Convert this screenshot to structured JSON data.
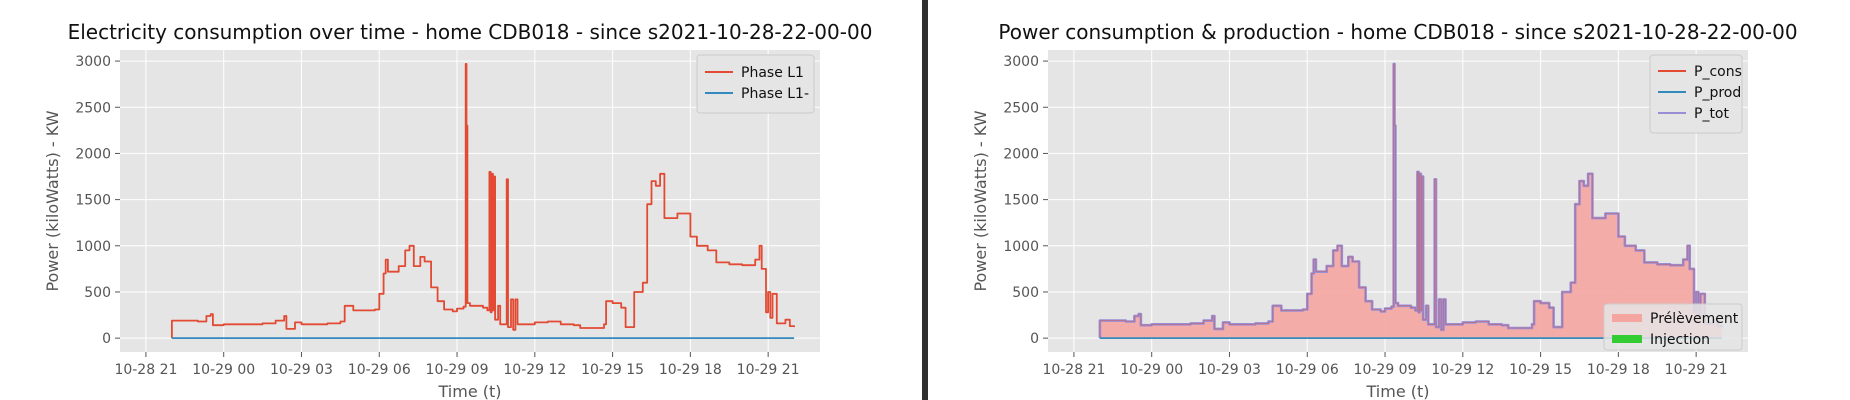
{
  "chart_data": [
    {
      "type": "line",
      "title": "Electricity consumption over time - home CDB018 - since s2021-10-28-22-00-00",
      "xlabel": "Time (t)",
      "ylabel": "Power (kiloWatts) - KW",
      "xlim": [
        "2021-10-28 20:00",
        "2021-10-29 23:00"
      ],
      "ylim": [
        -150,
        3120
      ],
      "x_ticks": [
        "10-28 21",
        "10-29 00",
        "10-29 03",
        "10-29 06",
        "10-29 09",
        "10-29 12",
        "10-29 15",
        "10-29 18",
        "10-29 21"
      ],
      "y_ticks": [
        0,
        500,
        1000,
        1500,
        2000,
        2500,
        3000
      ],
      "grid": true,
      "legend_position": "top-right",
      "colors": {
        "Phase L1": "#E24A33",
        "Phase L1-": "#348ABD"
      },
      "series": [
        {
          "name": "Phase L1",
          "style": "step",
          "points": [
            [
              "2021-10-28 22:00",
              0
            ],
            [
              "2021-10-28 22:00",
              190
            ],
            [
              "2021-10-28 23:00",
              180
            ],
            [
              "2021-10-28 23:20",
              240
            ],
            [
              "2021-10-28 23:30",
              260
            ],
            [
              "2021-10-28 23:35",
              140
            ],
            [
              "2021-10-29 00:00",
              150
            ],
            [
              "2021-10-29 01:30",
              160
            ],
            [
              "2021-10-29 02:00",
              190
            ],
            [
              "2021-10-29 02:20",
              240
            ],
            [
              "2021-10-29 02:25",
              100
            ],
            [
              "2021-10-29 02:45",
              170
            ],
            [
              "2021-10-29 03:00",
              150
            ],
            [
              "2021-10-29 04:00",
              160
            ],
            [
              "2021-10-29 04:30",
              180
            ],
            [
              "2021-10-29 04:40",
              350
            ],
            [
              "2021-10-29 05:00",
              300
            ],
            [
              "2021-10-29 05:50",
              310
            ],
            [
              "2021-10-29 06:00",
              480
            ],
            [
              "2021-10-29 06:10",
              700
            ],
            [
              "2021-10-29 06:15",
              850
            ],
            [
              "2021-10-29 06:20",
              720
            ],
            [
              "2021-10-29 06:45",
              780
            ],
            [
              "2021-10-29 07:00",
              950
            ],
            [
              "2021-10-29 07:10",
              1000
            ],
            [
              "2021-10-29 07:20",
              780
            ],
            [
              "2021-10-29 07:35",
              880
            ],
            [
              "2021-10-29 07:45",
              830
            ],
            [
              "2021-10-29 08:00",
              550
            ],
            [
              "2021-10-29 08:15",
              400
            ],
            [
              "2021-10-29 08:30",
              310
            ],
            [
              "2021-10-29 08:50",
              290
            ],
            [
              "2021-10-29 09:00",
              320
            ],
            [
              "2021-10-29 09:15",
              340
            ],
            [
              "2021-10-29 09:20",
              2970
            ],
            [
              "2021-10-29 09:22",
              2300
            ],
            [
              "2021-10-29 09:24",
              380
            ],
            [
              "2021-10-29 09:30",
              350
            ],
            [
              "2021-10-29 10:00",
              330
            ],
            [
              "2021-10-29 10:10",
              300
            ],
            [
              "2021-10-29 10:15",
              1800
            ],
            [
              "2021-10-29 10:18",
              280
            ],
            [
              "2021-10-29 10:20",
              1780
            ],
            [
              "2021-10-29 10:23",
              300
            ],
            [
              "2021-10-29 10:25",
              1750
            ],
            [
              "2021-10-29 10:28",
              200
            ],
            [
              "2021-10-29 10:35",
              350
            ],
            [
              "2021-10-29 10:40",
              150
            ],
            [
              "2021-10-29 10:55",
              1720
            ],
            [
              "2021-10-29 10:58",
              120
            ],
            [
              "2021-10-29 11:05",
              420
            ],
            [
              "2021-10-29 11:10",
              90
            ],
            [
              "2021-10-29 11:15",
              420
            ],
            [
              "2021-10-29 11:20",
              150
            ],
            [
              "2021-10-29 12:00",
              170
            ],
            [
              "2021-10-29 12:30",
              180
            ],
            [
              "2021-10-29 13:00",
              150
            ],
            [
              "2021-10-29 13:30",
              140
            ],
            [
              "2021-10-29 13:45",
              110
            ],
            [
              "2021-10-29 14:40",
              150
            ],
            [
              "2021-10-29 14:45",
              400
            ],
            [
              "2021-10-29 15:00",
              380
            ],
            [
              "2021-10-29 15:20",
              330
            ],
            [
              "2021-10-29 15:30",
              120
            ],
            [
              "2021-10-29 15:50",
              500
            ],
            [
              "2021-10-29 16:10",
              600
            ],
            [
              "2021-10-29 16:20",
              1450
            ],
            [
              "2021-10-29 16:30",
              1700
            ],
            [
              "2021-10-29 16:40",
              1650
            ],
            [
              "2021-10-29 16:50",
              1780
            ],
            [
              "2021-10-29 17:00",
              1300
            ],
            [
              "2021-10-29 17:30",
              1350
            ],
            [
              "2021-10-29 18:00",
              1100
            ],
            [
              "2021-10-29 18:15",
              1000
            ],
            [
              "2021-10-29 18:40",
              950
            ],
            [
              "2021-10-29 19:00",
              820
            ],
            [
              "2021-10-29 19:30",
              800
            ],
            [
              "2021-10-29 20:00",
              790
            ],
            [
              "2021-10-29 20:30",
              850
            ],
            [
              "2021-10-29 20:40",
              1000
            ],
            [
              "2021-10-29 20:45",
              750
            ],
            [
              "2021-10-29 20:55",
              280
            ],
            [
              "2021-10-29 21:00",
              500
            ],
            [
              "2021-10-29 21:05",
              220
            ],
            [
              "2021-10-29 21:10",
              480
            ],
            [
              "2021-10-29 21:20",
              160
            ],
            [
              "2021-10-29 21:40",
              200
            ],
            [
              "2021-10-29 21:50",
              130
            ],
            [
              "2021-10-29 22:00",
              120
            ]
          ]
        },
        {
          "name": "Phase L1-",
          "style": "line",
          "points": [
            [
              "2021-10-28 22:00",
              0
            ],
            [
              "2021-10-29 22:00",
              0
            ]
          ]
        }
      ]
    },
    {
      "type": "area",
      "title": "Power consumption & production - home CDB018 - since s2021-10-28-22-00-00",
      "xlabel": "Time (t)",
      "ylabel": "Power (kiloWatts) - KW",
      "xlim": [
        "2021-10-28 20:00",
        "2021-10-29 23:00"
      ],
      "ylim": [
        -150,
        3120
      ],
      "x_ticks": [
        "10-28 21",
        "10-29 00",
        "10-29 03",
        "10-29 06",
        "10-29 09",
        "10-29 12",
        "10-29 15",
        "10-29 18",
        "10-29 21"
      ],
      "y_ticks": [
        0,
        500,
        1000,
        1500,
        2000,
        2500,
        3000
      ],
      "grid": true,
      "legend_position": "top-right",
      "legend2_position": "bottom-right",
      "series": [
        {
          "name": "P_cons",
          "color": "#E24A33",
          "same_as": "Phase L1"
        },
        {
          "name": "P_prod",
          "color": "#348ABD",
          "same_as": "Phase L1-"
        },
        {
          "name": "P_tot",
          "color": "#988ED5",
          "same_as": "Phase L1"
        }
      ],
      "fills": [
        {
          "name": "Prélèvement",
          "color": "#F4A5A0",
          "under": "P_tot"
        },
        {
          "name": "Injection",
          "color": "#33CC33",
          "under": "P_prod"
        }
      ]
    }
  ]
}
